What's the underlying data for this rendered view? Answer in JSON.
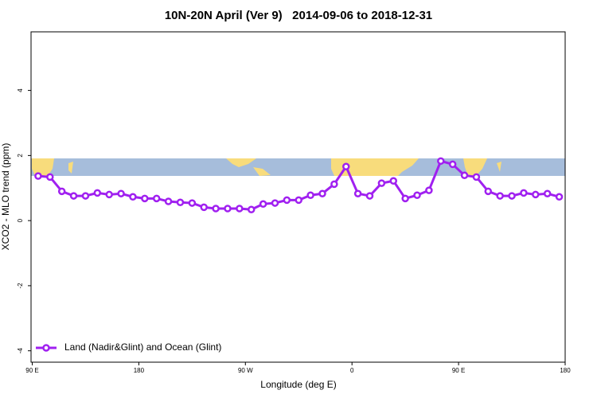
{
  "chart_data": {
    "type": "line",
    "title": "10N-20N April (Ver 9)   2014-09-06 to 2018-12-31",
    "x_label": "Longitude (deg E)",
    "y_label": "XCO2 - MLO trend (ppm)",
    "x": [
      95,
      105,
      115,
      125,
      135,
      145,
      155,
      165,
      175,
      185,
      195,
      205,
      215,
      225,
      235,
      245,
      255,
      265,
      275,
      285,
      295,
      305,
      315,
      325,
      335,
      345,
      355,
      365,
      375,
      385,
      395,
      405,
      415,
      425,
      435,
      445,
      455,
      465,
      475,
      485,
      495,
      505,
      515,
      525,
      535
    ],
    "series": [
      {
        "name": "Land (Nadir&Glint) and Ocean (Glint)",
        "color": "#a020f0",
        "values": [
          1.37,
          1.34,
          0.9,
          0.76,
          0.76,
          0.85,
          0.8,
          0.83,
          0.73,
          0.68,
          0.68,
          0.59,
          0.56,
          0.54,
          0.41,
          0.37,
          0.37,
          0.37,
          0.34,
          0.51,
          0.54,
          0.63,
          0.63,
          0.78,
          0.83,
          1.12,
          1.66,
          0.83,
          0.76,
          1.15,
          1.22,
          0.68,
          0.78,
          0.93,
          1.83,
          1.73,
          1.39,
          1.34,
          0.9,
          0.76,
          0.76,
          0.85,
          0.8,
          0.83,
          0.73
        ]
      }
    ],
    "xlim": [
      89,
      540
    ],
    "xticks": [
      {
        "value": 90,
        "label": "90 E"
      },
      {
        "value": 180,
        "label": "180"
      },
      {
        "value": 270,
        "label": "90 W"
      },
      {
        "value": 360,
        "label": "0"
      },
      {
        "value": 450,
        "label": "90 E"
      },
      {
        "value": 540,
        "label": "180"
      }
    ],
    "ylim": [
      -4.35,
      5.8
    ],
    "yticks": [
      -4,
      -2,
      0,
      2,
      4
    ],
    "legend": "bottom-left"
  }
}
